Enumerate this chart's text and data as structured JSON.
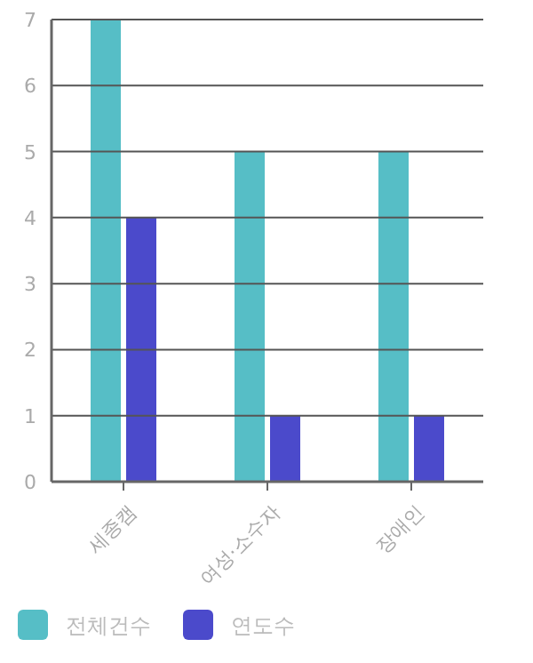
{
  "chart_data": {
    "type": "bar",
    "categories": [
      "세종캠",
      "여성·소수자",
      "장애인"
    ],
    "series": [
      {
        "name": "전체건수",
        "color": "#56bec6",
        "values": [
          7,
          5,
          5
        ]
      },
      {
        "name": "연도수",
        "color": "#4b4acb",
        "values": [
          4,
          1,
          1
        ]
      }
    ],
    "ylim": [
      0,
      7
    ],
    "yticks": [
      0,
      1,
      2,
      3,
      4,
      5,
      6,
      7
    ],
    "grid": "y",
    "legend": "bottom left"
  }
}
